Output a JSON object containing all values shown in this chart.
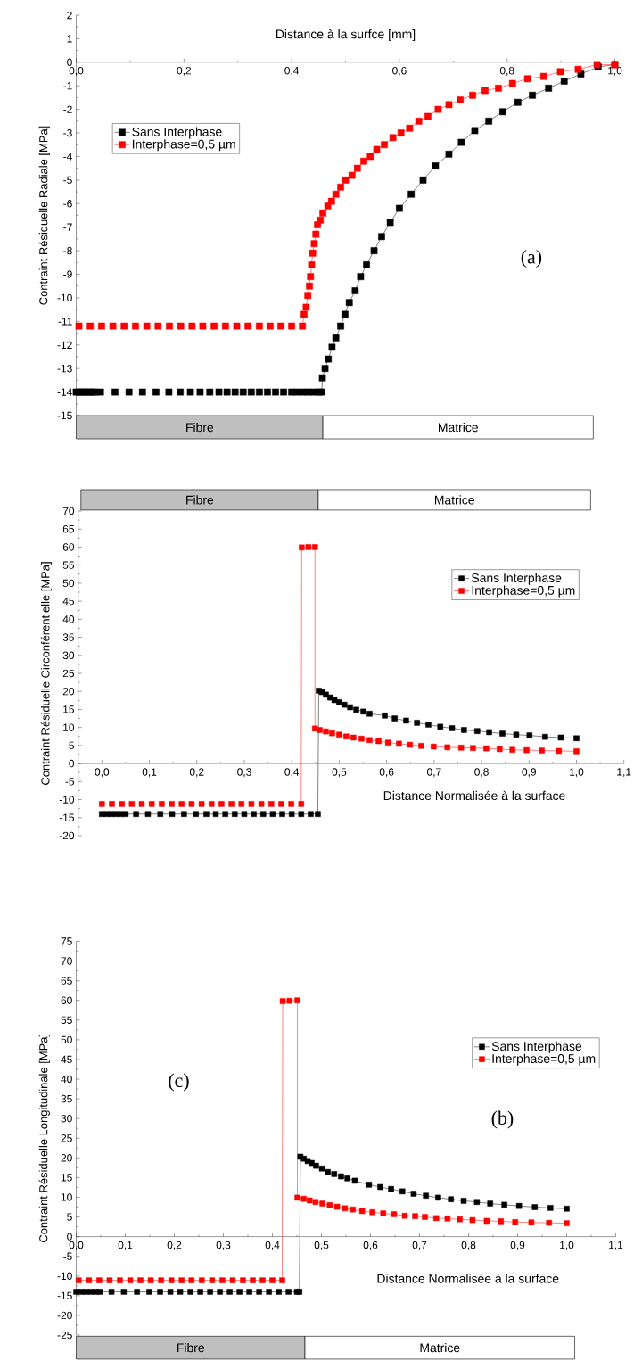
{
  "chart_data": [
    {
      "type": "line",
      "xlabel": "Distance à la surfce [mm]",
      "ylabel": "Contraint Résiduelle Radiale [MPa]",
      "xlim": [
        0,
        1
      ],
      "ylim": [
        -15,
        2
      ],
      "xticks": [
        {
          "value": 0,
          "label": "0,0"
        },
        {
          "value": 0.2,
          "label": "0,2"
        },
        {
          "value": 0.4,
          "label": "0,4"
        },
        {
          "value": 0.6,
          "label": "0,6"
        },
        {
          "value": 0.8,
          "label": "0,8"
        },
        {
          "value": 1,
          "label": "1,0"
        }
      ],
      "yticks": [
        -15,
        -14,
        -13,
        -12,
        -11,
        -10,
        -9,
        -8,
        -7,
        -6,
        -5,
        -4,
        -3,
        -2,
        -1,
        0,
        1,
        2
      ],
      "marker": "square",
      "line_style": "solid",
      "legend": "left",
      "series": [
        {
          "name": "Sans Interphase",
          "color": "#000000",
          "x": [
            0,
            0.005,
            0.01,
            0.015,
            0.02,
            0.025,
            0.03,
            0.035,
            0.045,
            0.072,
            0.098,
            0.123,
            0.148,
            0.172,
            0.193,
            0.212,
            0.23,
            0.248,
            0.265,
            0.28,
            0.295,
            0.31,
            0.325,
            0.34,
            0.355,
            0.37,
            0.385,
            0.4,
            0.41,
            0.42,
            0.43,
            0.44,
            0.45,
            0.456,
            0.457,
            0.462,
            0.468,
            0.475,
            0.482,
            0.491,
            0.499,
            0.507,
            0.518,
            0.528,
            0.539,
            0.553,
            0.567,
            0.583,
            0.6,
            0.622,
            0.644,
            0.667,
            0.692,
            0.715,
            0.74,
            0.766,
            0.792,
            0.82,
            0.847,
            0.877,
            0.906,
            0.937,
            0.969,
            1.0
          ],
          "values": [
            -14,
            -14,
            -14,
            -14,
            -14,
            -14,
            -14,
            -14,
            -14,
            -14,
            -14,
            -14,
            -14,
            -14,
            -14,
            -14,
            -14,
            -14,
            -14,
            -14,
            -14,
            -14,
            -14,
            -14,
            -14,
            -14,
            -14,
            -14,
            -14,
            -14,
            -14,
            -14,
            -14,
            -14,
            -13.4,
            -13.0,
            -12.6,
            -12.1,
            -11.7,
            -11.2,
            -10.7,
            -10.2,
            -9.7,
            -9.1,
            -8.6,
            -8.0,
            -7.4,
            -6.8,
            -6.2,
            -5.6,
            -5.0,
            -4.4,
            -3.9,
            -3.4,
            -2.9,
            -2.5,
            -2.1,
            -1.7,
            -1.4,
            -1.1,
            -0.8,
            -0.5,
            -0.2,
            -0.1
          ]
        },
        {
          "name": "Interphase=0,5 µm",
          "color": "#ff0000",
          "x": [
            0.005,
            0.026,
            0.047,
            0.068,
            0.089,
            0.11,
            0.131,
            0.152,
            0.173,
            0.194,
            0.215,
            0.235,
            0.256,
            0.277,
            0.298,
            0.319,
            0.34,
            0.36,
            0.38,
            0.4,
            0.42,
            0.423,
            0.427,
            0.43,
            0.433,
            0.435,
            0.437,
            0.439,
            0.442,
            0.445,
            0.448,
            0.453,
            0.458,
            0.467,
            0.474,
            0.482,
            0.491,
            0.5,
            0.512,
            0.522,
            0.534,
            0.546,
            0.558,
            0.572,
            0.588,
            0.603,
            0.619,
            0.636,
            0.653,
            0.672,
            0.692,
            0.713,
            0.736,
            0.759,
            0.784,
            0.81,
            0.838,
            0.868,
            0.899,
            0.932,
            0.967,
            1.0
          ],
          "values": [
            -11.2,
            -11.2,
            -11.2,
            -11.2,
            -11.2,
            -11.2,
            -11.2,
            -11.2,
            -11.2,
            -11.2,
            -11.2,
            -11.2,
            -11.2,
            -11.2,
            -11.2,
            -11.2,
            -11.2,
            -11.2,
            -11.2,
            -11.2,
            -11.2,
            -10.7,
            -10.4,
            -9.9,
            -9.5,
            -9.1,
            -8.6,
            -8.1,
            -7.7,
            -7.3,
            -6.9,
            -6.7,
            -6.4,
            -6.1,
            -5.9,
            -5.6,
            -5.3,
            -5.0,
            -4.8,
            -4.5,
            -4.2,
            -4.0,
            -3.7,
            -3.5,
            -3.2,
            -3.0,
            -2.8,
            -2.5,
            -2.3,
            -2.0,
            -1.8,
            -1.6,
            -1.4,
            -1.2,
            -1.1,
            -0.9,
            -0.7,
            -0.6,
            -0.4,
            -0.3,
            -0.1,
            -0.1
          ]
        }
      ],
      "annotations": [
        "(a)",
        "Fibre",
        "Matrice"
      ]
    },
    {
      "type": "line",
      "xlabel": "Distance Normalisée à la surface",
      "ylabel": "Contraint Résiduelle Circonférentielle [MPa]",
      "xlim": [
        -0.05,
        1.1
      ],
      "ylim": [
        -20,
        70
      ],
      "xticks": [
        {
          "value": 0,
          "label": "0,0"
        },
        {
          "value": 0.1,
          "label": "0,1"
        },
        {
          "value": 0.2,
          "label": "0,2"
        },
        {
          "value": 0.3,
          "label": "0,3"
        },
        {
          "value": 0.4,
          "label": "0,4"
        },
        {
          "value": 0.5,
          "label": "0,5"
        },
        {
          "value": 0.6,
          "label": "0,6"
        },
        {
          "value": 0.7,
          "label": "0,7"
        },
        {
          "value": 0.8,
          "label": "0,8"
        },
        {
          "value": 0.9,
          "label": "0,9"
        },
        {
          "value": 1,
          "label": "1,0"
        },
        {
          "value": 1.1,
          "label": "1,1"
        }
      ],
      "yticks": [
        -20,
        -15,
        -10,
        -5,
        0,
        5,
        10,
        15,
        20,
        25,
        30,
        35,
        40,
        45,
        50,
        55,
        60,
        65,
        70
      ],
      "marker": "square",
      "line_style": "solid",
      "legend": "top right",
      "series": [
        {
          "name": "Sans Interphase",
          "color": "#000000",
          "x": [
            0,
            0.01,
            0.02,
            0.03,
            0.04,
            0.05,
            0.072,
            0.097,
            0.123,
            0.148,
            0.173,
            0.198,
            0.22,
            0.24,
            0.26,
            0.28,
            0.3,
            0.32,
            0.34,
            0.36,
            0.38,
            0.4,
            0.42,
            0.44,
            0.455,
            0.457,
            0.464,
            0.472,
            0.481,
            0.49,
            0.5,
            0.511,
            0.523,
            0.536,
            0.551,
            0.564,
            0.596,
            0.617,
            0.641,
            0.664,
            0.688,
            0.713,
            0.738,
            0.763,
            0.791,
            0.816,
            0.844,
            0.873,
            0.901,
            0.934,
            0.967,
            1.0
          ],
          "values": [
            -14,
            -14,
            -14,
            -14,
            -14,
            -14,
            -14,
            -14,
            -14,
            -14,
            -14,
            -14,
            -14,
            -14,
            -14,
            -14,
            -14,
            -14,
            -14,
            -14,
            -14,
            -14,
            -14,
            -14,
            -14,
            20.2,
            19.8,
            19.1,
            18.3,
            17.6,
            17.0,
            16.3,
            15.6,
            14.9,
            14.4,
            13.8,
            13.3,
            12.5,
            11.9,
            11.3,
            10.8,
            10.2,
            9.8,
            9.3,
            9.0,
            8.7,
            8.3,
            8.0,
            7.8,
            7.4,
            7.2,
            7.0
          ]
        },
        {
          "name": "Interphase=0,5 µm",
          "color": "#ff0000",
          "x": [
            0,
            0.021,
            0.042,
            0.063,
            0.084,
            0.105,
            0.126,
            0.147,
            0.168,
            0.189,
            0.21,
            0.231,
            0.252,
            0.273,
            0.294,
            0.315,
            0.336,
            0.357,
            0.378,
            0.399,
            0.42,
            0.421,
            0.435,
            0.449,
            0.449,
            0.459,
            0.472,
            0.485,
            0.5,
            0.515,
            0.53,
            0.547,
            0.564,
            0.583,
            0.603,
            0.626,
            0.649,
            0.673,
            0.699,
            0.728,
            0.757,
            0.782,
            0.81,
            0.838,
            0.865,
            0.895,
            0.927,
            0.963,
            1.0
          ],
          "values": [
            -11.2,
            -11.2,
            -11.2,
            -11.2,
            -11.2,
            -11.2,
            -11.2,
            -11.2,
            -11.2,
            -11.2,
            -11.2,
            -11.2,
            -11.2,
            -11.2,
            -11.2,
            -11.2,
            -11.2,
            -11.2,
            -11.2,
            -11.2,
            -11.2,
            59.9,
            60.0,
            60.0,
            9.7,
            9.3,
            8.9,
            8.4,
            8.0,
            7.5,
            7.2,
            6.9,
            6.5,
            6.2,
            5.8,
            5.5,
            5.2,
            4.9,
            4.7,
            4.5,
            4.4,
            4.3,
            4.2,
            4.0,
            3.8,
            3.7,
            3.6,
            3.5,
            3.4
          ]
        }
      ],
      "annotations": [
        "Fibre",
        "Matrice"
      ]
    },
    {
      "type": "line",
      "xlabel": "Distance Normalisée à la surface",
      "ylabel": "Contraint Résiduelle Longitudinale [MPa]",
      "xlim": [
        0,
        1.1
      ],
      "ylim": [
        -25,
        75
      ],
      "xticks": [
        {
          "value": 0,
          "label": "0,0"
        },
        {
          "value": 0.1,
          "label": "0,1"
        },
        {
          "value": 0.2,
          "label": "0,2"
        },
        {
          "value": 0.3,
          "label": "0,3"
        },
        {
          "value": 0.4,
          "label": "0,4"
        },
        {
          "value": 0.5,
          "label": "0,5"
        },
        {
          "value": 0.6,
          "label": "0,6"
        },
        {
          "value": 0.7,
          "label": "0,7"
        },
        {
          "value": 0.8,
          "label": "0,8"
        },
        {
          "value": 0.9,
          "label": "0,9"
        },
        {
          "value": 1,
          "label": "1,0"
        },
        {
          "value": 1.1,
          "label": "1,1"
        }
      ],
      "yticks": [
        -25,
        -20,
        -15,
        -10,
        -5,
        0,
        5,
        10,
        15,
        20,
        25,
        30,
        35,
        40,
        45,
        50,
        55,
        60,
        65,
        70,
        75
      ],
      "marker": "square",
      "line_style": "solid",
      "legend": "right",
      "series": [
        {
          "name": "Sans Interphase",
          "color": "#000000",
          "x": [
            0,
            0.01,
            0.02,
            0.03,
            0.04,
            0.048,
            0.072,
            0.097,
            0.124,
            0.149,
            0.171,
            0.192,
            0.212,
            0.233,
            0.253,
            0.273,
            0.293,
            0.313,
            0.333,
            0.353,
            0.373,
            0.393,
            0.413,
            0.433,
            0.45,
            0.455,
            0.457,
            0.464,
            0.472,
            0.48,
            0.489,
            0.501,
            0.513,
            0.526,
            0.54,
            0.553,
            0.568,
            0.597,
            0.62,
            0.642,
            0.665,
            0.688,
            0.713,
            0.738,
            0.764,
            0.79,
            0.817,
            0.844,
            0.873,
            0.903,
            0.935,
            0.967,
            1.0
          ],
          "values": [
            -14,
            -14,
            -14,
            -14,
            -14,
            -14,
            -14,
            -14,
            -14,
            -14,
            -14,
            -14,
            -14,
            -14,
            -14,
            -14,
            -14,
            -14,
            -14,
            -14,
            -14,
            -14,
            -14,
            -14,
            -14,
            -14,
            20.3,
            19.8,
            19.2,
            18.7,
            18.0,
            17.3,
            16.4,
            15.9,
            15.3,
            14.8,
            14.2,
            13.2,
            12.6,
            12.1,
            11.5,
            10.9,
            10.4,
            9.9,
            9.5,
            9.1,
            8.8,
            8.4,
            8.1,
            7.8,
            7.5,
            7.3,
            7.1
          ]
        },
        {
          "name": "Interphase=0,5 µm",
          "color": "#ff0000",
          "x": [
            0.005,
            0.026,
            0.047,
            0.068,
            0.089,
            0.11,
            0.131,
            0.152,
            0.173,
            0.194,
            0.215,
            0.235,
            0.256,
            0.277,
            0.298,
            0.319,
            0.34,
            0.36,
            0.38,
            0.4,
            0.42,
            0.421,
            0.435,
            0.451,
            0.451,
            0.464,
            0.476,
            0.488,
            0.502,
            0.517,
            0.532,
            0.548,
            0.564,
            0.583,
            0.604,
            0.626,
            0.648,
            0.67,
            0.691,
            0.711,
            0.734,
            0.757,
            0.782,
            0.808,
            0.837,
            0.866,
            0.895,
            0.928,
            0.964,
            1.0
          ],
          "values": [
            -11.1,
            -11.1,
            -11.1,
            -11.1,
            -11.1,
            -11.1,
            -11.1,
            -11.1,
            -11.1,
            -11.1,
            -11.1,
            -11.1,
            -11.1,
            -11.1,
            -11.1,
            -11.1,
            -11.1,
            -11.1,
            -11.1,
            -11.1,
            -11.1,
            59.8,
            59.9,
            60.0,
            9.9,
            9.6,
            9.2,
            8.8,
            8.4,
            8.0,
            7.6,
            7.2,
            6.9,
            6.5,
            6.2,
            5.9,
            5.7,
            5.3,
            5.2,
            5.0,
            4.7,
            4.6,
            4.4,
            4.2,
            4.0,
            3.9,
            3.7,
            3.6,
            3.5,
            3.4
          ]
        }
      ],
      "annotations": [
        "(c)",
        "(b)",
        "Fibre",
        "Matrice"
      ]
    }
  ]
}
